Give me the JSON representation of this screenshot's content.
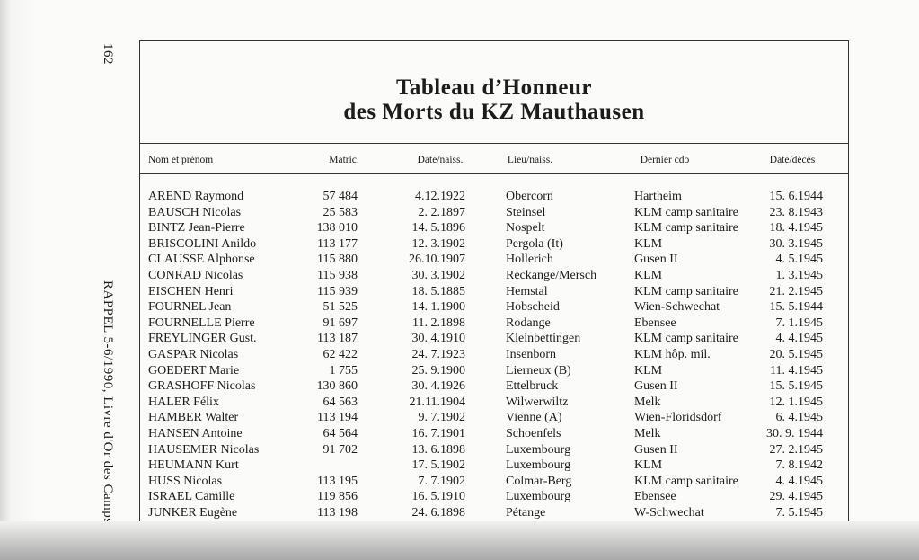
{
  "page": {
    "page_number": "162",
    "running_footer": "RAPPEL 5-6/1990, Livre d'Or des Camps"
  },
  "header": {
    "title_line1": "Tableau d’Honneur",
    "title_line2": "des Morts du KZ Mauthausen"
  },
  "table": {
    "columns": [
      "Nom et prénom",
      "Matric.",
      "Date/naiss.",
      "Lieu/naiss.",
      "Dernier cdo",
      "Date/décès"
    ],
    "rows": [
      [
        "AREND Raymond",
        "57 484",
        "4.12.1922",
        "Obercorn",
        "Hartheim",
        "15. 6.1944"
      ],
      [
        "BAUSCH Nicolas",
        "25 583",
        "2. 2.1897",
        "Steinsel",
        "KLM camp sanitaire",
        "23. 8.1943"
      ],
      [
        "BINTZ Jean-Pierre",
        "138 010",
        "14. 5.1896",
        "Nospelt",
        "KLM camp sanitaire",
        "18. 4.1945"
      ],
      [
        "BRISCOLINI Anildo",
        "113 177",
        "12. 3.1902",
        "Pergola (It)",
        "KLM",
        "30. 3.1945"
      ],
      [
        "CLAUSSE Alphonse",
        "115 880",
        "26.10.1907",
        "Hollerich",
        "Gusen II",
        "4. 5.1945"
      ],
      [
        "CONRAD Nicolas",
        "115 938",
        "30. 3.1902",
        "Reckange/Mersch",
        "KLM",
        "1. 3.1945"
      ],
      [
        "EISCHEN Henri",
        "115 939",
        "18. 5.1885",
        "Hemstal",
        "KLM camp sanitaire",
        "21. 2.1945"
      ],
      [
        "FOURNEL Jean",
        "51 525",
        "14. 1.1900",
        "Hobscheid",
        "Wien-Schwechat",
        "15. 5.1944"
      ],
      [
        "FOURNELLE Pierre",
        "91 697",
        "11. 2.1898",
        "Rodange",
        "Ebensee",
        "7. 1.1945"
      ],
      [
        "FREYLINGER Gust.",
        "113 187",
        "30. 4.1910",
        "Kleinbettingen",
        "KLM camp sanitaire",
        "4. 4.1945"
      ],
      [
        "GASPAR Nicolas",
        "62 422",
        "24. 7.1923",
        "Insenborn",
        "KLM hôp. mil.",
        "20. 5.1945"
      ],
      [
        "GOEDERT Marie",
        "1 755",
        "25. 9.1900",
        "Lierneux (B)",
        "KLM",
        "11. 4.1945"
      ],
      [
        "GRASHOFF Nicolas",
        "130 860",
        "30. 4.1926",
        "Ettelbruck",
        "Gusen II",
        "15. 5.1945"
      ],
      [
        "HALER Félix",
        "64 563",
        "21.11.1904",
        "Wilwerwiltz",
        "Melk",
        "12. 1.1945"
      ],
      [
        "HAMBER Walter",
        "113 194",
        "9. 7.1902",
        "Vienne (A)",
        "Wien-Floridsdorf",
        "6. 4.1945"
      ],
      [
        "HANSEN Antoine",
        "64 564",
        "16. 7.1901",
        "Schoenfels",
        "Melk",
        "30. 9. 1944"
      ],
      [
        "HAUSEMER Nicolas",
        "91 702",
        "13. 6.1898",
        "Luxembourg",
        "Gusen II",
        "27. 2.1945"
      ],
      [
        "HEUMANN Kurt",
        null,
        "17. 5.1902",
        "Luxembourg",
        "KLM",
        "7. 8.1942"
      ],
      [
        "HUSS Nicolas",
        "113 195",
        "7. 7.1902",
        "Colmar-Berg",
        "KLM camp sanitaire",
        "4. 4.1945"
      ],
      [
        "ISRAEL Camille",
        "119 856",
        "16. 5.1910",
        "Luxembourg",
        "Ebensee",
        "29. 4.1945"
      ],
      [
        "JUNKER Eugène",
        "113 198",
        "24. 6.1898",
        "Pétange",
        "W-Schwechat",
        "7. 5.1945"
      ]
    ]
  }
}
